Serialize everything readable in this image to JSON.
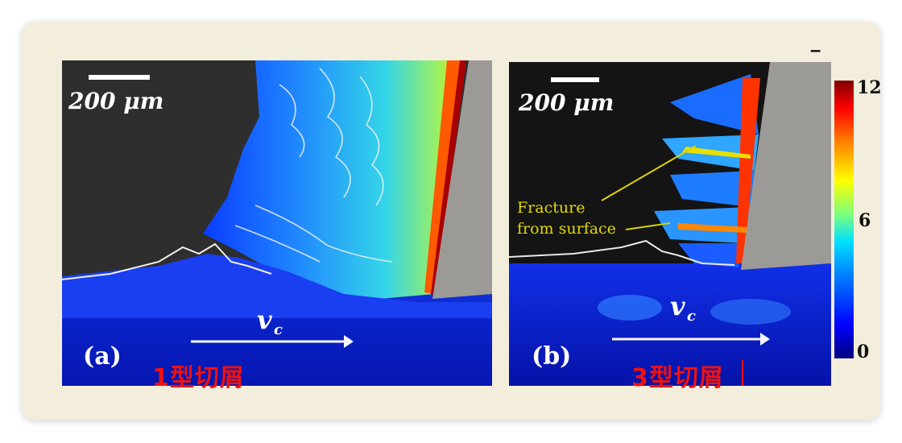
{
  "panel_a": {
    "scale_text": "200 μm",
    "label": "(a)",
    "velocity_text": "v",
    "velocity_sub": "c",
    "chip_type": "1型切屑"
  },
  "panel_b": {
    "scale_text": "200 μm",
    "label": "(b)",
    "velocity_text": "v",
    "velocity_sub": "c",
    "annotation_line1": "Fracture",
    "annotation_line2": "from surface",
    "chip_type": "3型切屑"
  },
  "colorbar": {
    "max_label": "12",
    "mid_label": "6",
    "min_label": "0"
  },
  "minus_mark": "–"
}
